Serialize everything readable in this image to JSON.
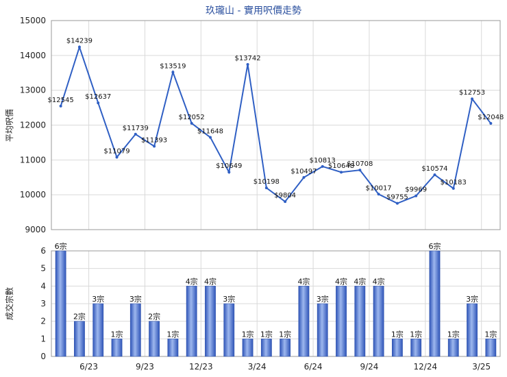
{
  "chart_data": [
    {
      "type": "line",
      "title": "玖瓏山 - 實用呎價走勢",
      "ylabel": "平均呎價",
      "ylim": [
        9000,
        15000
      ],
      "y_ticks": [
        "9000",
        "10000",
        "11000",
        "12000",
        "13000",
        "14000",
        "15000"
      ],
      "grid": true,
      "colors": {
        "line": "#2f5fc4",
        "point": "#2f5fc4"
      },
      "series": [
        {
          "values": [
            12545,
            14239,
            12637,
            11079,
            11739,
            11393,
            13519,
            12052,
            11648,
            10649,
            13742,
            10198,
            9804,
            10497,
            10813,
            10648,
            10708,
            10017,
            9755,
            9969,
            10574,
            10183,
            12753,
            12048
          ],
          "labels": [
            "$12545",
            "$14239",
            "$12637",
            "$11079",
            "$11739",
            "$11393",
            "$13519",
            "$12052",
            "$11648",
            "$10649",
            "$13742",
            "$10198",
            "$9804",
            "$10497",
            "$10813",
            "$10648",
            "$10708",
            "$10017",
            "$9755",
            "$9969",
            "$10574",
            "$10183",
            "$12753",
            "$12048"
          ]
        }
      ]
    },
    {
      "type": "bar",
      "ylabel": "成交宗數",
      "ylim": [
        0,
        6
      ],
      "y_ticks": [
        "0",
        "1",
        "2",
        "3",
        "4",
        "5",
        "6"
      ],
      "grid": true,
      "colors": {
        "bar_light": "#9db7ee",
        "bar_dark": "#2f55b8"
      },
      "x_tick_labels": [
        "6/23",
        "9/23",
        "12/23",
        "3/24",
        "6/24",
        "9/24",
        "12/24",
        "3/25"
      ],
      "series": [
        {
          "values": [
            6,
            2,
            3,
            1,
            3,
            2,
            1,
            4,
            4,
            3,
            1,
            1,
            1,
            4,
            3,
            4,
            4,
            4,
            1,
            1,
            6,
            1,
            3,
            1
          ],
          "labels": [
            "6宗",
            "2宗",
            "3宗",
            "1宗",
            "3宗",
            "2宗",
            "1宗",
            "4宗",
            "4宗",
            "3宗",
            "1宗",
            "1宗",
            "1宗",
            "4宗",
            "3宗",
            "4宗",
            "4宗",
            "4宗",
            "1宗",
            "1宗",
            "6宗",
            "1宗",
            "3宗",
            "1宗"
          ]
        }
      ]
    }
  ]
}
